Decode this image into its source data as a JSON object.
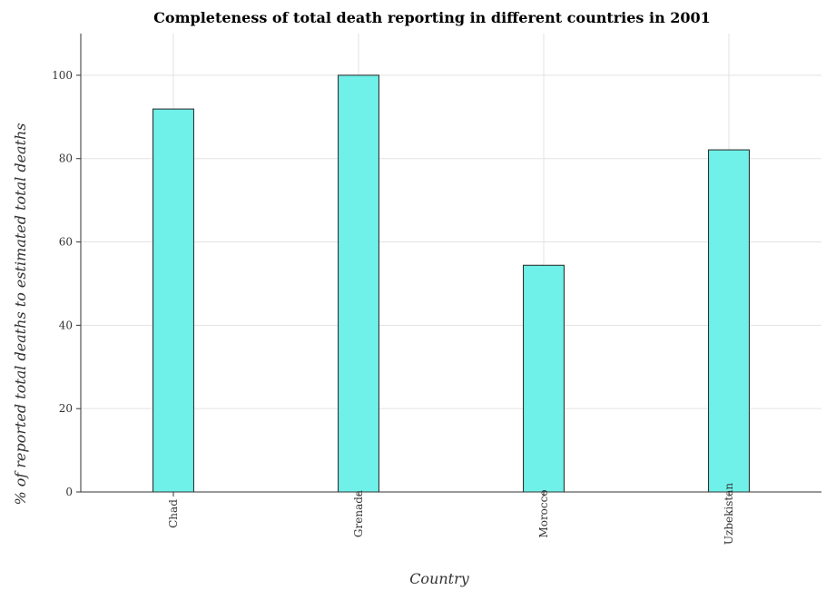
{
  "chart_data": {
    "type": "bar",
    "title": "Completeness of total death reporting in different countries in 2001",
    "xlabel": "Country",
    "ylabel": "% of reported total deaths to estimated total deaths",
    "categories": [
      "Chad",
      "Grenada",
      "Morocco",
      "Uzbekistan"
    ],
    "values": [
      91.9,
      100.0,
      54.4,
      82.1
    ],
    "ylim": [
      0,
      110
    ],
    "yticks": [
      0,
      20,
      40,
      60,
      80,
      100
    ],
    "grid": true,
    "colors": {
      "bar": "#6ff0e8",
      "bar_edge": "#222222"
    }
  }
}
